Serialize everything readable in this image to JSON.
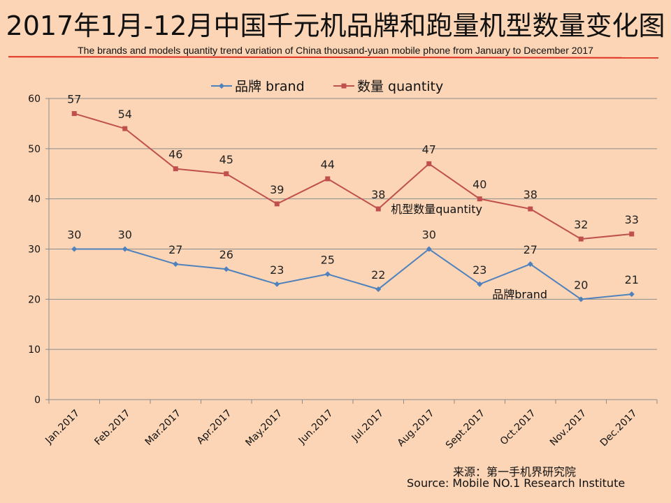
{
  "page": {
    "title": "2017年1月-12月中国千元机品牌和跑量机型数量变化图",
    "subtitle": "The brands and models quantity trend variation of China thousand-yuan mobile phone from January to December  2017",
    "source_cn": "来源：第一手机界研究院",
    "source_en": "Source: Mobile NO.1 Research Institute"
  },
  "colors": {
    "background": "#fbd5b5",
    "brand": "#4f81bd",
    "quantity": "#c0504d",
    "rule": "#e03020",
    "grid": "#8c8c8c"
  },
  "chart_data": {
    "type": "line",
    "categories": [
      "Jan.2017",
      "Feb.2017",
      "Mar.2017",
      "Apr.2017",
      "May.2017",
      "Jun.2017",
      "Jul.2017",
      "Aug.2017",
      "Sept.2017",
      "Oct.2017",
      "Nov.2017",
      "Dec.2017"
    ],
    "series": [
      {
        "name": "品牌 brand",
        "key": "brand",
        "values": [
          30,
          30,
          27,
          26,
          23,
          25,
          22,
          30,
          23,
          27,
          20,
          21
        ]
      },
      {
        "name": "数量 quantity",
        "key": "quantity",
        "values": [
          57,
          54,
          46,
          45,
          39,
          44,
          38,
          47,
          40,
          38,
          32,
          33
        ]
      }
    ],
    "ylim": [
      0,
      60
    ],
    "yticks": [
      0,
      10,
      20,
      30,
      40,
      50,
      60
    ],
    "grid": true,
    "legend": "top",
    "annotations": [
      {
        "text": "机型数量quantity",
        "series": "quantity",
        "index": 6
      },
      {
        "text": "品牌brand",
        "series": "brand",
        "index": 8
      }
    ]
  }
}
